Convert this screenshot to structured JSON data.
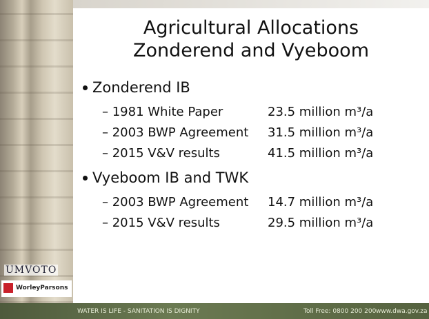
{
  "title": [
    "Agricultural Allocations",
    "Zonderend and Vyeboom"
  ],
  "sections": [
    {
      "heading": "Zonderend IB",
      "items": [
        {
          "label": "– 1981 White Paper",
          "value": "23.5 million m³/a"
        },
        {
          "label": "– 2003 BWP Agreement",
          "value": "31.5 million m³/a"
        },
        {
          "label": "– 2015 V&V results",
          "value": "41.5 million m³/a"
        }
      ]
    },
    {
      "heading": "Vyeboom IB and TWK",
      "items": [
        {
          "label": "– 2003 BWP Agreement",
          "value": "14.7 million m³/a"
        },
        {
          "label": "– 2015 V&V results",
          "value": "29.5 million m³/a"
        }
      ]
    }
  ],
  "logos": [
    "UMVOTO",
    "WorleyParsons"
  ],
  "footer": {
    "slogan": "WATER IS LIFE - SANITATION IS DIGNITY",
    "phone": "Toll Free: 0800 200 200",
    "website": "www.dwa.gov.za"
  }
}
